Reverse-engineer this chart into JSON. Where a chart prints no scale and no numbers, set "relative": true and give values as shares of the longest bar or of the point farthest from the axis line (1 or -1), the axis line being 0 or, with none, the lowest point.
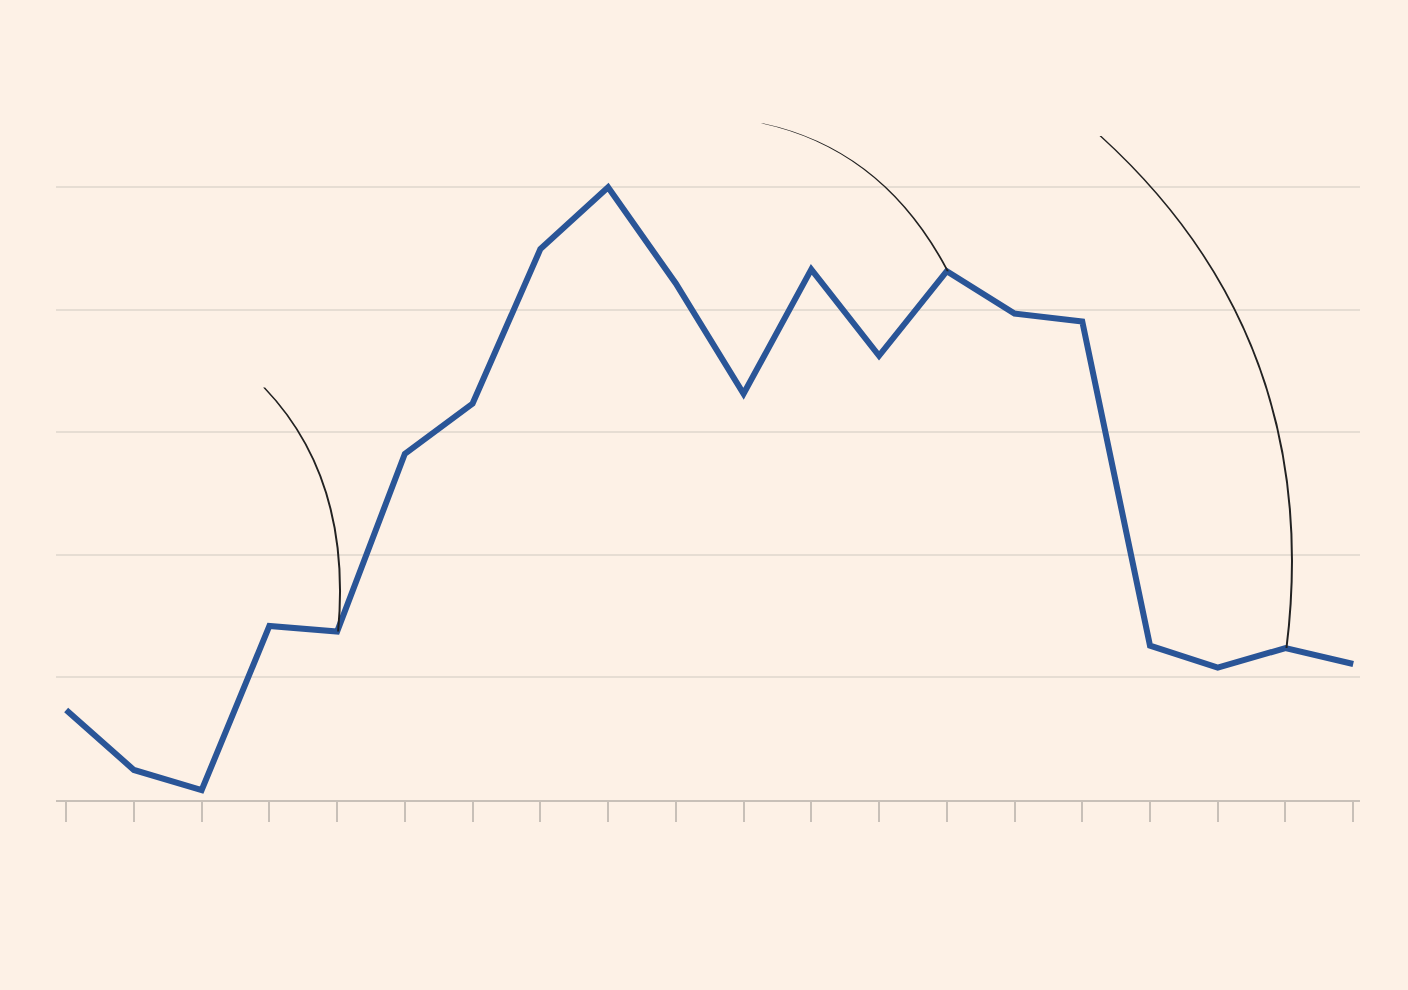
{
  "chart_data": {
    "type": "line",
    "relative": true,
    "grid": "y",
    "color": "#2a5597",
    "categories": [
      null,
      null,
      null,
      null,
      null,
      null,
      null,
      null,
      null,
      null,
      null,
      null,
      null,
      null,
      null,
      null,
      null,
      null,
      null,
      null
    ],
    "values": [
      0.147,
      0.049,
      0.016,
      0.284,
      0.275,
      0.565,
      0.647,
      0.899,
      1,
      0.843,
      0.663,
      0.866,
      0.725,
      0.863,
      0.794,
      0.781,
      0.252,
      0.216,
      0.248,
      0.222
    ]
  }
}
